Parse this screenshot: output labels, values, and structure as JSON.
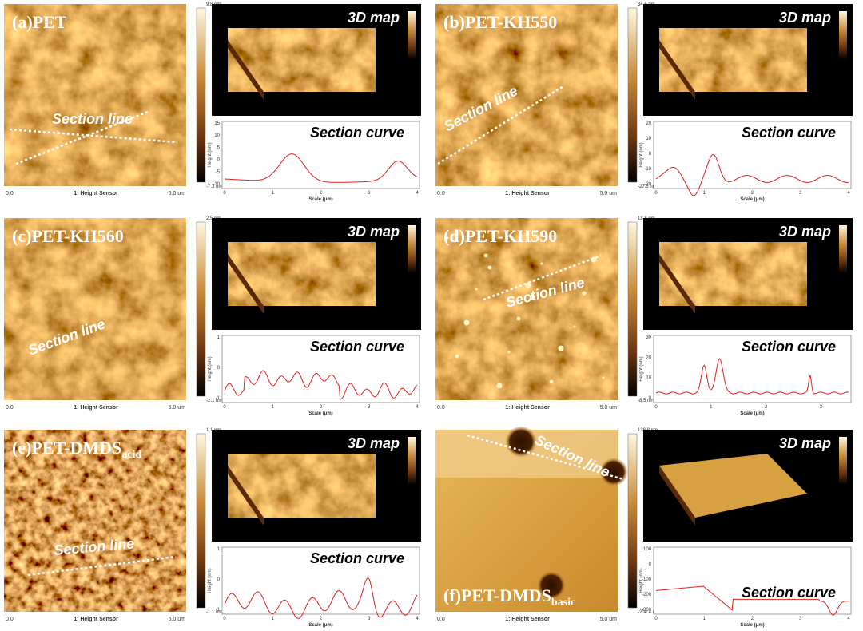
{
  "panels": [
    {
      "label": "(a)PET",
      "colorbar_top": "9.8 nm",
      "colorbar_bottom": "-7.3 nm",
      "scale_start": "0.0",
      "sensor": "1: Height Sensor",
      "scale_end": "5.0 um",
      "map_label": "3D map",
      "section_line": "Section line",
      "section_curve": "Section curve",
      "curve_ylabel": "Height (nm)",
      "curve_xlabel": "Scale (μm)",
      "curve_yticks": [
        15,
        10,
        5,
        0,
        -5,
        -10
      ],
      "curve_xticks": [
        0,
        1,
        2,
        3,
        4
      ]
    },
    {
      "label": "(b)PET-KH550",
      "colorbar_top": "34.5 nm",
      "colorbar_bottom": "-27.5 nm",
      "scale_start": "0.0",
      "sensor": "1: Height Sensor",
      "scale_end": "5.0 um",
      "map_label": "3D map",
      "section_line": "Section line",
      "section_curve": "Section curve",
      "curve_ylabel": "Height (nm)",
      "curve_xlabel": "Scale (μm)",
      "curve_yticks": [
        20,
        10,
        0,
        -10,
        -20
      ],
      "curve_xticks": [
        0,
        1,
        2,
        3,
        4
      ]
    },
    {
      "label": "(c)PET-KH560",
      "colorbar_top": "2.5 nm",
      "colorbar_bottom": "-2.1 nm",
      "scale_start": "0.0",
      "sensor": "1: Height Sensor",
      "scale_end": "5.0 um",
      "map_label": "3D map",
      "section_line": "Section line",
      "section_curve": "Section curve",
      "curve_ylabel": "Height (nm)",
      "curve_xlabel": "Scale (μm)",
      "curve_yticks": [
        1,
        0,
        -1
      ],
      "curve_xticks": [
        0,
        1,
        2,
        3,
        4
      ]
    },
    {
      "label": "(d)PET-KH590",
      "colorbar_top": "18.8 nm",
      "colorbar_bottom": "-8.5 nm",
      "scale_start": "0.0",
      "sensor": "1: Height Sensor",
      "scale_end": "5.0 um",
      "map_label": "3D map",
      "section_line": "Section line",
      "section_curve": "Section curve",
      "curve_ylabel": "Height (nm)",
      "curve_xlabel": "Scale (μm)",
      "curve_yticks": [
        30,
        20,
        10,
        0
      ],
      "curve_xticks": [
        0,
        1,
        2,
        3
      ]
    },
    {
      "label": "(e)PET-DMDS",
      "label_sub": "acid",
      "colorbar_top": "1.1 nm",
      "colorbar_bottom": "-1.1 nm",
      "scale_start": "0.0",
      "sensor": "1: Height Sensor",
      "scale_end": "5.0 um",
      "map_label": "3D map",
      "section_line": "Section line",
      "section_curve": "Section curve",
      "curve_ylabel": "Height (nm)",
      "curve_xlabel": "Scale (μm)",
      "curve_yticks": [
        1,
        0,
        -1
      ],
      "curve_xticks": [
        0,
        1,
        2,
        3,
        4
      ]
    },
    {
      "label": "(f)PET-DMDS",
      "label_sub": "basic",
      "colorbar_top": "138.8 nm",
      "colorbar_bottom": "-204.4 nm",
      "scale_start": "0.0",
      "sensor": "1: Height Sensor",
      "scale_end": "5.0 um",
      "map_label": "3D map",
      "section_line": "Section line",
      "section_curve": "Section curve",
      "curve_ylabel": "Height (nm)",
      "curve_xlabel": "Scale (μm)",
      "curve_yticks": [
        100,
        0,
        -100,
        -200,
        -300
      ],
      "curve_xticks": [
        0,
        1,
        2,
        3,
        4
      ]
    }
  ]
}
